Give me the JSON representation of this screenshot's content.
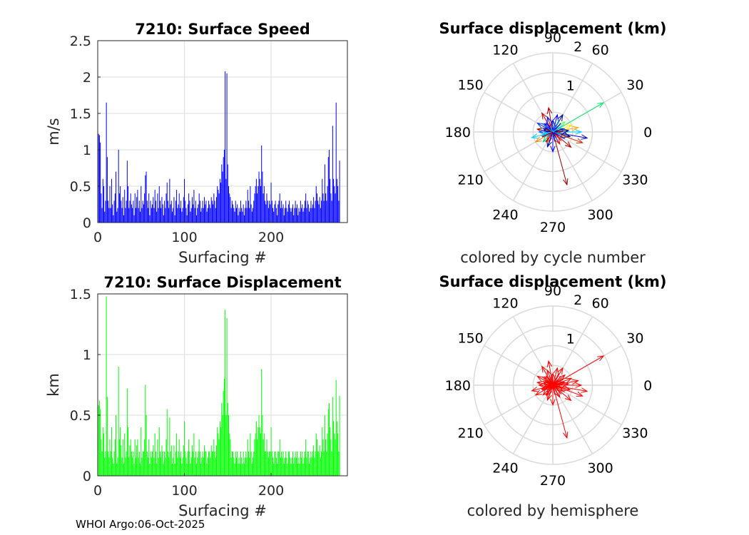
{
  "footer": "WHOI Argo:06-Oct-2025",
  "chart_data": [
    {
      "id": "speed",
      "type": "bar",
      "title": "7210: Surface Speed",
      "xlabel": "Surfacing #",
      "ylabel": "m/s",
      "xlim": [
        0,
        288
      ],
      "ylim": [
        0,
        2.5
      ],
      "xticks": [
        "0",
        "100",
        "200"
      ],
      "yticks": [
        "0",
        "0.5",
        "1",
        "1.5",
        "2",
        "2.5"
      ],
      "color": "#0000ff",
      "grid": true,
      "values": [
        1.22,
        1.2,
        1.1,
        0.4,
        0.2,
        0.6,
        0.5,
        0.15,
        0.3,
        1.65,
        0.9,
        0.3,
        0.2,
        0.5,
        0.2,
        0.6,
        0.25,
        0.1,
        0.3,
        0.4,
        0.7,
        0.15,
        0.2,
        1.0,
        0.4,
        0.5,
        0.3,
        0.2,
        0.35,
        0.1,
        0.45,
        0.2,
        0.3,
        0.85,
        0.5,
        0.2,
        0.3,
        0.4,
        0.25,
        0.2,
        0.3,
        0.1,
        0.4,
        0.2,
        0.35,
        0.45,
        0.2,
        0.3,
        0.15,
        0.5,
        0.2,
        0.3,
        0.25,
        0.4,
        0.65,
        0.7,
        0.3,
        0.2,
        0.4,
        0.1,
        0.3,
        0.2,
        0.25,
        0.35,
        0.2,
        0.45,
        0.3,
        0.15,
        0.4,
        0.2,
        0.5,
        0.3,
        0.2,
        0.35,
        0.25,
        0.1,
        0.3,
        0.2,
        0.4,
        0.55,
        0.3,
        0.2,
        0.6,
        0.25,
        0.3,
        0.15,
        0.2,
        0.35,
        0.1,
        0.3,
        0.45,
        0.2,
        0.25,
        0.4,
        0.2,
        0.3,
        0.15,
        0.2,
        0.35,
        0.6,
        0.3,
        0.2,
        0.1,
        0.25,
        0.4,
        0.3,
        0.15,
        0.2,
        0.35,
        0.25,
        0.45,
        0.2,
        0.3,
        0.1,
        0.2,
        0.25,
        0.4,
        0.3,
        0.15,
        0.2,
        0.3,
        0.2,
        0.35,
        0.25,
        0.3,
        0.15,
        0.2,
        0.3,
        0.25,
        0.2,
        0.35,
        0.3,
        0.25,
        0.4,
        0.3,
        0.2,
        0.35,
        0.5,
        0.45,
        0.4,
        0.6,
        0.55,
        0.8,
        0.7,
        0.9,
        1.0,
        2.08,
        0.6,
        2.05,
        0.8,
        0.5,
        0.4,
        0.35,
        0.2,
        0.3,
        0.25,
        0.2,
        0.15,
        0.3,
        0.2,
        0.25,
        0.1,
        0.2,
        0.15,
        0.3,
        0.2,
        0.15,
        0.25,
        0.1,
        0.2,
        0.3,
        0.2,
        0.45,
        0.3,
        0.2,
        0.5,
        0.25,
        0.15,
        0.2,
        0.3,
        0.4,
        0.5,
        0.6,
        0.4,
        0.5,
        0.7,
        0.6,
        0.5,
        1.06,
        0.7,
        0.4,
        0.5,
        0.3,
        0.25,
        0.4,
        0.3,
        0.2,
        0.3,
        0.25,
        0.55,
        0.3,
        0.2,
        0.15,
        0.25,
        0.3,
        0.2,
        0.1,
        0.25,
        0.3,
        0.4,
        0.2,
        0.3,
        0.2,
        0.25,
        0.1,
        0.2,
        0.3,
        0.2,
        0.15,
        0.25,
        0.3,
        0.2,
        0.15,
        0.2,
        0.25,
        0.1,
        0.2,
        0.3,
        0.2,
        0.25,
        0.1,
        0.2,
        0.15,
        0.3,
        0.2,
        0.25,
        0.15,
        0.2,
        0.3,
        0.4,
        0.2,
        0.3,
        0.25,
        0.15,
        0.2,
        0.3,
        0.2,
        0.25,
        0.35,
        0.2,
        0.3,
        0.5,
        0.4,
        0.3,
        0.25,
        0.35,
        0.2,
        0.3,
        0.6,
        0.4,
        0.3,
        0.8,
        0.4,
        0.3,
        0.5,
        0.9,
        1.0,
        0.6,
        0.4,
        0.3,
        1.33,
        0.6,
        0.5,
        0.4,
        1.65,
        0.6,
        0.5,
        0.3,
        0.85
      ]
    },
    {
      "id": "displacement",
      "type": "bar",
      "title": "7210: Surface Displacement",
      "xlabel": "Surfacing #",
      "ylabel": "km",
      "xlim": [
        0,
        288
      ],
      "ylim": [
        0,
        1.5
      ],
      "xticks": [
        "0",
        "100",
        "200"
      ],
      "yticks": [
        "0",
        "0.5",
        "1",
        "1.5"
      ],
      "color": "#00ff00",
      "grid": true,
      "values": [
        0.58,
        0.62,
        0.55,
        0.3,
        0.2,
        0.4,
        0.35,
        0.15,
        0.2,
        1.48,
        0.65,
        0.2,
        0.15,
        0.3,
        0.2,
        0.4,
        0.15,
        0.1,
        0.2,
        0.3,
        0.5,
        0.1,
        0.15,
        0.9,
        0.3,
        0.4,
        0.25,
        0.15,
        0.3,
        0.1,
        0.35,
        0.15,
        0.2,
        0.72,
        0.4,
        0.15,
        0.25,
        0.3,
        0.2,
        0.15,
        0.2,
        0.1,
        0.3,
        0.15,
        0.25,
        0.3,
        0.15,
        0.2,
        0.1,
        0.4,
        0.15,
        0.2,
        0.2,
        0.3,
        0.75,
        0.5,
        0.2,
        0.15,
        0.3,
        0.1,
        0.2,
        0.15,
        0.2,
        0.25,
        0.15,
        0.35,
        0.2,
        0.1,
        0.3,
        0.15,
        0.4,
        0.2,
        0.15,
        0.25,
        0.2,
        0.1,
        0.2,
        0.15,
        0.3,
        0.55,
        0.2,
        0.15,
        0.48,
        0.2,
        0.25,
        0.1,
        0.15,
        0.25,
        0.1,
        0.2,
        0.35,
        0.15,
        0.2,
        0.3,
        0.15,
        0.2,
        0.1,
        0.15,
        0.25,
        0.45,
        0.2,
        0.15,
        0.1,
        0.2,
        0.3,
        0.2,
        0.1,
        0.15,
        0.25,
        0.2,
        0.35,
        0.15,
        0.2,
        0.1,
        0.15,
        0.2,
        0.3,
        0.2,
        0.1,
        0.15,
        0.2,
        0.15,
        0.25,
        0.2,
        0.2,
        0.1,
        0.15,
        0.2,
        0.2,
        0.15,
        0.25,
        0.2,
        0.2,
        0.3,
        0.2,
        0.15,
        0.25,
        0.4,
        0.35,
        0.3,
        0.45,
        0.4,
        0.6,
        0.5,
        0.7,
        0.8,
        1.37,
        0.5,
        1.3,
        0.6,
        0.5,
        0.35,
        0.3,
        0.15,
        0.2,
        0.2,
        0.15,
        0.1,
        0.2,
        0.15,
        0.2,
        0.1,
        0.15,
        0.1,
        0.2,
        0.15,
        0.1,
        0.2,
        0.1,
        0.15,
        0.2,
        0.15,
        0.3,
        0.2,
        0.15,
        0.35,
        0.2,
        0.1,
        0.15,
        0.2,
        0.3,
        0.35,
        0.45,
        0.3,
        0.4,
        0.5,
        0.4,
        0.35,
        0.88,
        0.5,
        0.3,
        0.35,
        0.2,
        0.2,
        0.3,
        0.2,
        0.15,
        0.2,
        0.2,
        0.4,
        0.2,
        0.15,
        0.1,
        0.2,
        0.2,
        0.15,
        0.1,
        0.2,
        0.2,
        0.3,
        0.15,
        0.2,
        0.15,
        0.2,
        0.1,
        0.15,
        0.2,
        0.15,
        0.1,
        0.2,
        0.2,
        0.15,
        0.1,
        0.15,
        0.2,
        0.1,
        0.15,
        0.2,
        0.15,
        0.2,
        0.1,
        0.15,
        0.1,
        0.2,
        0.15,
        0.2,
        0.1,
        0.15,
        0.2,
        0.3,
        0.15,
        0.2,
        0.2,
        0.1,
        0.15,
        0.2,
        0.15,
        0.2,
        0.25,
        0.15,
        0.2,
        0.35,
        0.3,
        0.2,
        0.2,
        0.25,
        0.15,
        0.2,
        0.4,
        0.3,
        0.2,
        0.5,
        0.3,
        0.2,
        0.35,
        0.55,
        0.6,
        0.4,
        0.3,
        0.2,
        0.65,
        0.45,
        0.35,
        0.3,
        0.79,
        0.45,
        0.35,
        0.2,
        0.66
      ]
    },
    {
      "id": "polar-cycle",
      "type": "polar",
      "title": "Surface displacement (km)",
      "caption": "colored by cycle number",
      "rlim": [
        0,
        2
      ],
      "rticks": [
        "1",
        "2"
      ],
      "angle_labels": [
        "0",
        "30",
        "60",
        "90",
        "120",
        "150",
        "180",
        "210",
        "240",
        "270",
        "300",
        "330"
      ],
      "vectors": [
        {
          "angle": 30,
          "r": 1.48,
          "color": "#00ee66"
        },
        {
          "angle": 285,
          "r": 1.38,
          "color": "#990000"
        },
        {
          "angle": 100,
          "r": 0.62,
          "color": "#aa0000"
        },
        {
          "angle": 120,
          "r": 0.55,
          "color": "#cc0000"
        },
        {
          "angle": 60,
          "r": 0.5,
          "color": "#000099"
        },
        {
          "angle": 75,
          "r": 0.45,
          "color": "#0000ff"
        },
        {
          "angle": 350,
          "r": 0.88,
          "color": "#0000cc"
        },
        {
          "angle": 340,
          "r": 0.8,
          "color": "#dd2200"
        },
        {
          "angle": 10,
          "r": 0.65,
          "color": "#ffaa00"
        },
        {
          "angle": 0,
          "r": 0.72,
          "color": "#00ccff"
        },
        {
          "angle": 195,
          "r": 0.55,
          "color": "#00ccff"
        },
        {
          "angle": 210,
          "r": 0.5,
          "color": "#ff8800"
        },
        {
          "angle": 225,
          "r": 0.35,
          "color": "#00cc88"
        },
        {
          "angle": 170,
          "r": 0.4,
          "color": "#990000"
        },
        {
          "angle": 150,
          "r": 0.45,
          "color": "#0033ff"
        },
        {
          "angle": 250,
          "r": 0.4,
          "color": "#0000aa"
        },
        {
          "angle": 270,
          "r": 0.5,
          "color": "#0000ff"
        },
        {
          "angle": 300,
          "r": 0.35,
          "color": "#ff0000"
        },
        {
          "angle": 320,
          "r": 0.6,
          "color": "#aa0000"
        },
        {
          "angle": 20,
          "r": 0.5,
          "color": "#ffee00"
        },
        {
          "angle": 40,
          "r": 0.4,
          "color": "#66ff66"
        },
        {
          "angle": 135,
          "r": 0.3,
          "color": "#0000ff"
        },
        {
          "angle": 180,
          "r": 0.35,
          "color": "#0066ff"
        },
        {
          "angle": 240,
          "r": 0.3,
          "color": "#ff4400"
        },
        {
          "angle": 5,
          "r": 0.4,
          "color": "#000088"
        },
        {
          "angle": 345,
          "r": 0.45,
          "color": "#000066"
        },
        {
          "angle": 90,
          "r": 0.3,
          "color": "#0000cc"
        },
        {
          "angle": 110,
          "r": 0.4,
          "color": "#0000ff"
        },
        {
          "angle": 200,
          "r": 0.3,
          "color": "#00aaff"
        },
        {
          "angle": 330,
          "r": 0.3,
          "color": "#cc6600"
        },
        {
          "angle": 15,
          "r": 0.3,
          "color": "#0044ff"
        },
        {
          "angle": 160,
          "r": 0.25,
          "color": "#000099"
        }
      ]
    },
    {
      "id": "polar-hemisphere",
      "type": "polar",
      "title": "Surface displacement (km)",
      "caption": "colored by hemisphere",
      "rlim": [
        0,
        2
      ],
      "rticks": [
        "1",
        "2"
      ],
      "angle_labels": [
        "0",
        "30",
        "60",
        "90",
        "120",
        "150",
        "180",
        "210",
        "240",
        "270",
        "300",
        "330"
      ],
      "color": "#ff0000",
      "vectors": [
        {
          "angle": 30,
          "r": 1.48
        },
        {
          "angle": 285,
          "r": 1.38
        },
        {
          "angle": 100,
          "r": 0.62
        },
        {
          "angle": 120,
          "r": 0.55
        },
        {
          "angle": 60,
          "r": 0.5
        },
        {
          "angle": 75,
          "r": 0.45
        },
        {
          "angle": 350,
          "r": 0.88
        },
        {
          "angle": 340,
          "r": 0.8
        },
        {
          "angle": 10,
          "r": 0.65
        },
        {
          "angle": 0,
          "r": 0.72
        },
        {
          "angle": 195,
          "r": 0.55
        },
        {
          "angle": 210,
          "r": 0.5
        },
        {
          "angle": 225,
          "r": 0.35
        },
        {
          "angle": 170,
          "r": 0.4
        },
        {
          "angle": 150,
          "r": 0.45
        },
        {
          "angle": 250,
          "r": 0.4
        },
        {
          "angle": 270,
          "r": 0.5
        },
        {
          "angle": 300,
          "r": 0.35
        },
        {
          "angle": 320,
          "r": 0.6
        },
        {
          "angle": 20,
          "r": 0.5
        },
        {
          "angle": 40,
          "r": 0.4
        },
        {
          "angle": 135,
          "r": 0.3
        },
        {
          "angle": 180,
          "r": 0.35
        },
        {
          "angle": 240,
          "r": 0.3
        },
        {
          "angle": 5,
          "r": 0.4
        },
        {
          "angle": 345,
          "r": 0.45
        },
        {
          "angle": 90,
          "r": 0.3
        },
        {
          "angle": 110,
          "r": 0.4
        },
        {
          "angle": 200,
          "r": 0.3
        },
        {
          "angle": 330,
          "r": 0.3
        },
        {
          "angle": 15,
          "r": 0.3
        },
        {
          "angle": 160,
          "r": 0.25
        }
      ]
    }
  ]
}
